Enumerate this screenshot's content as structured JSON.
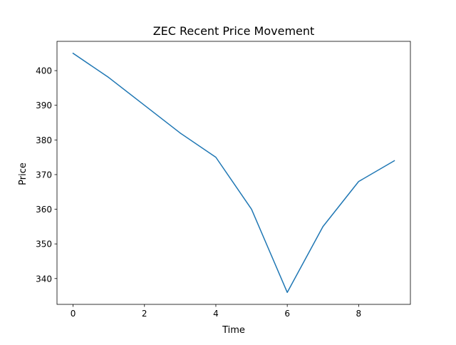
{
  "chart_data": {
    "type": "line",
    "title": "ZEC Recent Price Movement",
    "xlabel": "Time",
    "ylabel": "Price",
    "x": [
      0,
      1,
      2,
      3,
      4,
      5,
      6,
      7,
      8,
      9
    ],
    "series": [
      {
        "values": [
          405,
          398,
          390,
          382,
          375,
          360,
          336,
          355,
          368,
          374
        ]
      }
    ],
    "xlim": [
      -0.45,
      9.45
    ],
    "ylim": [
      332.55,
      408.45
    ],
    "xticks": [
      0,
      2,
      4,
      6,
      8
    ],
    "xtick_labels": [
      "0",
      "2",
      "4",
      "6",
      "8"
    ],
    "yticks": [
      340,
      350,
      360,
      370,
      380,
      390,
      400
    ],
    "ytick_labels": [
      "340",
      "350",
      "360",
      "370",
      "380",
      "390",
      "400"
    ],
    "grid": false,
    "line_color": "#1f77b4"
  }
}
